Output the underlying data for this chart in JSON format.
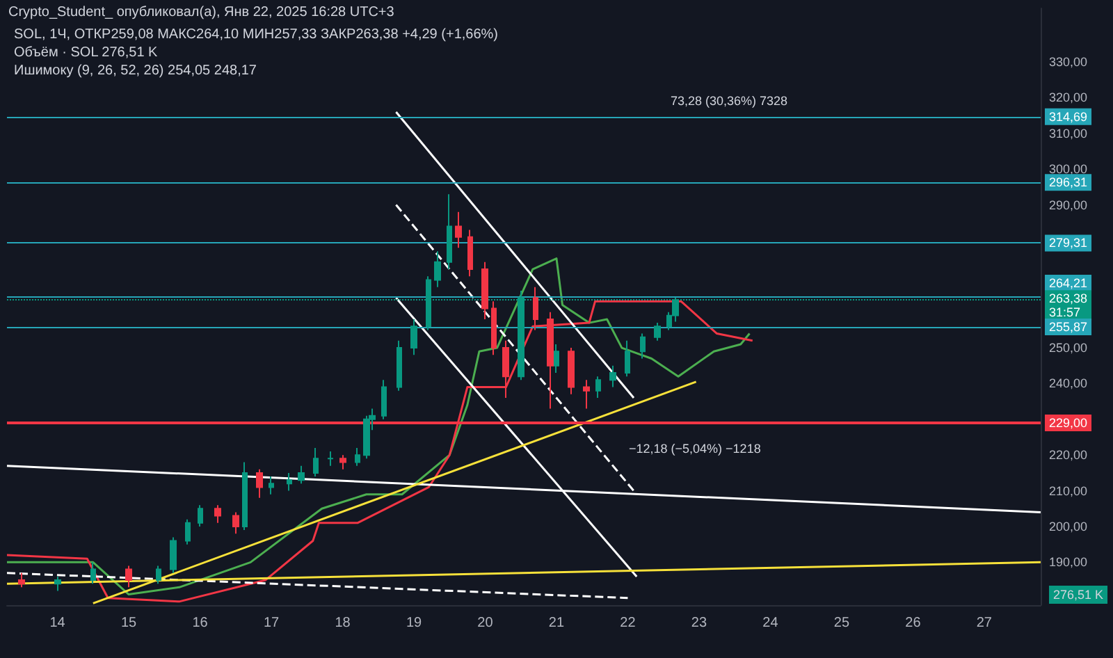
{
  "chart_data": {
    "type": "candlestick",
    "title": "Crypto_Student_ опубликовал(а), Янв 22, 2025 16:28 UTC+3",
    "annotations": [
      "SOL, 1Ч, ОТКР259,08 МАКС264,10 МИН257,33 ЗАКР263,38 +4,29 (+1,66%)",
      "Объём · SOL 276,51 K",
      "Ишимоку (9, 26, 52, 26) 254,05 248,17",
      "73,28 (30,36%) 7328",
      "−12,18 (−5,04%) −1218",
      "276,51 K"
    ],
    "x": [
      "2025-01-13T12:00",
      "2025-01-14T00:00",
      "2025-01-14T12:00",
      "2025-01-15T00:00",
      "2025-01-15T10:00",
      "2025-01-15T15:00",
      "2025-01-15T20:00",
      "2025-01-16T00:00",
      "2025-01-16T06:00",
      "2025-01-16T12:00",
      "2025-01-16T15:00",
      "2025-01-16T20:00",
      "2025-01-17T00:00",
      "2025-01-17T06:00",
      "2025-01-17T10:00",
      "2025-01-17T15:00",
      "2025-01-17T20:00",
      "2025-01-18T00:00",
      "2025-01-18T05:00",
      "2025-01-18T08:00",
      "2025-01-18T10:00",
      "2025-01-18T14:00",
      "2025-01-18T19:00",
      "2025-01-19T00:00",
      "2025-01-19T05:00",
      "2025-01-19T08:00",
      "2025-01-19T12:00",
      "2025-01-19T15:00",
      "2025-01-19T19:00",
      "2025-01-20T00:00",
      "2025-01-20T03:00",
      "2025-01-20T07:00",
      "2025-01-20T12:00",
      "2025-01-20T17:00",
      "2025-01-20T22:00",
      "2025-01-21T00:00",
      "2025-01-21T05:00",
      "2025-01-21T10:00",
      "2025-01-21T14:00",
      "2025-01-21T19:00",
      "2025-01-22T00:00",
      "2025-01-22T05:00",
      "2025-01-22T10:00",
      "2025-01-22T14:00",
      "2025-01-22T16:00"
    ],
    "ohlc": [
      [
        185,
        187,
        183,
        184
      ],
      [
        184,
        186,
        182,
        185
      ],
      [
        185,
        190,
        184,
        188
      ],
      [
        188,
        189,
        183,
        185
      ],
      [
        185,
        189,
        184,
        188
      ],
      [
        188,
        197,
        187,
        196
      ],
      [
        196,
        202,
        195,
        201
      ],
      [
        201,
        206,
        200,
        205
      ],
      [
        205,
        206,
        201,
        203
      ],
      [
        203,
        204,
        198,
        200
      ],
      [
        200,
        218,
        199,
        215
      ],
      [
        215,
        216,
        208,
        211
      ],
      [
        211,
        214,
        209,
        212
      ],
      [
        212,
        215,
        210,
        213
      ],
      [
        213,
        217,
        212,
        215
      ],
      [
        215,
        222,
        214,
        219
      ],
      [
        219,
        221,
        217,
        219
      ],
      [
        219,
        220,
        216,
        218
      ],
      [
        218,
        222,
        217,
        220
      ],
      [
        220,
        231,
        219,
        230
      ],
      [
        230,
        233,
        227,
        231
      ],
      [
        231,
        241,
        230,
        239
      ],
      [
        239,
        252,
        238,
        250
      ],
      [
        250,
        258,
        248,
        256
      ],
      [
        256,
        270,
        255,
        269
      ],
      [
        269,
        277,
        267,
        274
      ],
      [
        274,
        293,
        272,
        284
      ],
      [
        284,
        288,
        278,
        281
      ],
      [
        281,
        283,
        270,
        272
      ],
      [
        272,
        274,
        258,
        261
      ],
      [
        261,
        263,
        248,
        250
      ],
      [
        250,
        252,
        236,
        242
      ],
      [
        242,
        266,
        241,
        264
      ],
      [
        264,
        267,
        255,
        258
      ],
      [
        258,
        260,
        233,
        245
      ],
      [
        245,
        251,
        243,
        249
      ],
      [
        249,
        250,
        237,
        239
      ],
      [
        239,
        241,
        233,
        238
      ],
      [
        238,
        242,
        236,
        241
      ],
      [
        241,
        245,
        239,
        243
      ],
      [
        243,
        252,
        242,
        249
      ],
      [
        249,
        254,
        247,
        253
      ],
      [
        253,
        257,
        252,
        256
      ],
      [
        256,
        260,
        255,
        259
      ],
      [
        259.08,
        264.1,
        257.33,
        263.38
      ]
    ],
    "series": [
      {
        "type": "line",
        "color": "#4caf50",
        "x": [
          "2025-01-13T07:00",
          "2025-01-14T12:00",
          "2025-01-15T00:00",
          "2025-01-15T17:00",
          "2025-01-16T17:00",
          "2025-01-17T17:00",
          "2025-01-18T08:00",
          "2025-01-18T20:00",
          "2025-01-19T12:00",
          "2025-01-19T18:00",
          "2025-01-19T22:00",
          "2025-01-20T04:00",
          "2025-01-20T10:00",
          "2025-01-20T16:00",
          "2025-01-21T00:00",
          "2025-01-21T02:00",
          "2025-01-21T11:00",
          "2025-01-21T17:00",
          "2025-01-21T22:00",
          "2025-01-22T08:00",
          "2025-01-22T17:00",
          "2025-01-23T05:00",
          "2025-01-23T14:00",
          "2025-01-23T17:00"
        ],
        "values": [
          190,
          190,
          181,
          183,
          190,
          205,
          209,
          209,
          220,
          234,
          249,
          250,
          261,
          272,
          275,
          262,
          257,
          258,
          250,
          247,
          242,
          249,
          251,
          254
        ]
      },
      {
        "type": "line",
        "color": "#f23645",
        "x": [
          "2025-01-13T07:00",
          "2025-01-14T10:00",
          "2025-01-14T17:00",
          "2025-01-15T17:00",
          "2025-01-16T22:00",
          "2025-01-17T14:00",
          "2025-01-17T16:00",
          "2025-01-18T05:00",
          "2025-01-19T05:00",
          "2025-01-19T12:00",
          "2025-01-19T18:00",
          "2025-01-20T07:00",
          "2025-01-20T16:00",
          "2025-01-21T11:00",
          "2025-01-21T13:00",
          "2025-01-22T18:00",
          "2025-01-23T06:00",
          "2025-01-23T18:00"
        ],
        "values": [
          192,
          191,
          180,
          179,
          185,
          196,
          201,
          201,
          211,
          220,
          239,
          239,
          256,
          257,
          263,
          263,
          254,
          252
        ]
      },
      {
        "type": "line",
        "color": "#ffffff",
        "x": [
          "2025-01-18T18:00",
          "2025-01-22T02:00"
        ],
        "values": [
          316,
          236
        ]
      },
      {
        "type": "line",
        "color": "#ffffff",
        "line_style": "dashed",
        "x": [
          "2025-01-18T18:00",
          "2025-01-22T02:00"
        ],
        "values": [
          290,
          210
        ]
      },
      {
        "type": "line",
        "color": "#ffffff",
        "x": [
          "2025-01-18T18:00",
          "2025-01-22T03:00"
        ],
        "values": [
          264,
          186
        ]
      },
      {
        "type": "line",
        "color": "#ffffff",
        "x": [
          "2025-01-13T07:00",
          "2025-01-27T19:00"
        ],
        "values": [
          217,
          204
        ]
      },
      {
        "type": "line",
        "color": "#ffffff",
        "line_style": "dashed",
        "x": [
          "2025-01-13T07:00",
          "2025-01-22T00:00"
        ],
        "values": [
          187,
          180
        ]
      },
      {
        "type": "line",
        "color": "#f7e13a",
        "x": [
          "2025-01-14T12:00",
          "2025-01-22T23:00"
        ],
        "values": [
          178.5,
          240.5
        ]
      },
      {
        "type": "line",
        "color": "#f7e13a",
        "x": [
          "2025-01-13T07:00",
          "2025-01-27T19:00"
        ],
        "values": [
          184,
          190
        ]
      }
    ],
    "ref_lines": [
      {
        "axis": "y",
        "value": 314.69,
        "label": "314,69",
        "color": "#26a6b8"
      },
      {
        "axis": "y",
        "value": 296.31,
        "label": "296,31",
        "color": "#26a6b8"
      },
      {
        "axis": "y",
        "value": 279.31,
        "label": "279,31",
        "color": "#26a6b8"
      },
      {
        "axis": "y",
        "value": 264.21,
        "label": "264,21",
        "color": "#26a6b8"
      },
      {
        "axis": "y",
        "value": 263.38,
        "label": "263,38\n31:57",
        "color": "#089981",
        "line_style": "dotted"
      },
      {
        "axis": "y",
        "value": 255.87,
        "label": "255,87",
        "color": "#26a6b8"
      },
      {
        "axis": "y",
        "value": 229,
        "label": "229,00",
        "color": "#f23645"
      }
    ],
    "xlim": [
      "2025-01-13T07:00",
      "2025-01-27T19:00"
    ],
    "xticks": [
      {
        "value": "2025-01-14",
        "label": "14"
      },
      {
        "value": "2025-01-15",
        "label": "15"
      },
      {
        "value": "2025-01-16",
        "label": "16"
      },
      {
        "value": "2025-01-17",
        "label": "17"
      },
      {
        "value": "2025-01-18",
        "label": "18"
      },
      {
        "value": "2025-01-19",
        "label": "19"
      },
      {
        "value": "2025-01-20",
        "label": "20"
      },
      {
        "value": "2025-01-21",
        "label": "21"
      },
      {
        "value": "2025-01-22",
        "label": "22"
      },
      {
        "value": "2025-01-23",
        "label": "23"
      },
      {
        "value": "2025-01-24",
        "label": "24"
      },
      {
        "value": "2025-01-25",
        "label": "25"
      },
      {
        "value": "2025-01-26",
        "label": "26"
      },
      {
        "value": "2025-01-27",
        "label": "27"
      }
    ],
    "ylim": [
      178,
      345
    ],
    "yticks": [
      {
        "value": 190,
        "label": "190,00"
      },
      {
        "value": 200,
        "label": "200,00"
      },
      {
        "value": 210,
        "label": "210,00"
      },
      {
        "value": 220,
        "label": "220,00"
      },
      {
        "value": 240,
        "label": "240,00"
      },
      {
        "value": 250,
        "label": "250,00"
      },
      {
        "value": 290,
        "label": "290,00"
      },
      {
        "value": 300,
        "label": "300,00"
      },
      {
        "value": 310,
        "label": "310,00"
      },
      {
        "value": 320,
        "label": "320,00"
      },
      {
        "value": 330,
        "label": "330,00"
      }
    ],
    "grid": false
  }
}
